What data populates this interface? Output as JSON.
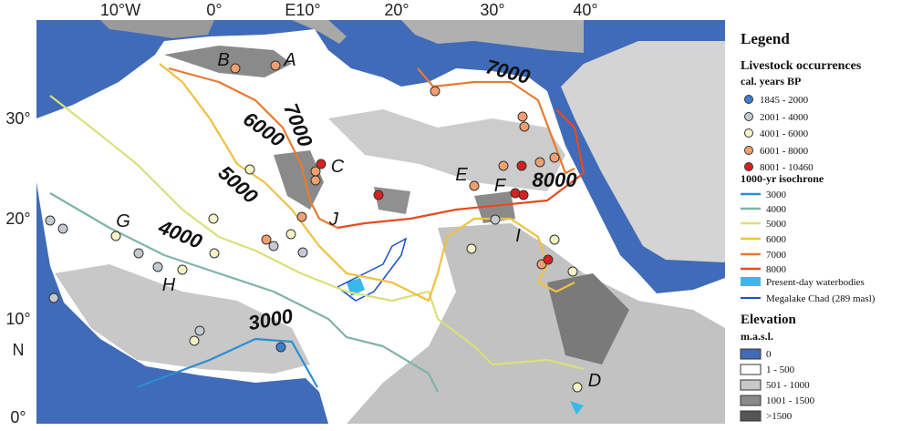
{
  "map": {
    "lon_labels": [
      "10°W",
      "0°",
      "E10°",
      "20°",
      "30°",
      "40°"
    ],
    "lat_labels": [
      "30°",
      "20°",
      "10°",
      "N",
      "0°"
    ],
    "isochrone_labels": [
      "7000",
      "6000",
      "5000",
      "4000",
      "3000",
      "7000",
      "8000"
    ],
    "sites": [
      "A",
      "B",
      "C",
      "D",
      "E",
      "F",
      "G",
      "H",
      "I",
      "J"
    ]
  },
  "legend": {
    "title": "Legend",
    "livestock": {
      "title": "Livestock occurrences",
      "subtitle": "cal. years BP",
      "items": [
        "1845 - 2000",
        "2001 - 4000",
        "4001 - 6000",
        "6001 - 8000",
        "8001 - 10460"
      ]
    },
    "isochrone": {
      "title": "1000-yr isochrone",
      "items": [
        "3000",
        "4000",
        "5000",
        "6000",
        "7000",
        "8000"
      ]
    },
    "water": [
      "Present-day waterbodies",
      "Megalake Chad (289 masl)"
    ],
    "elevation": {
      "title": "Elevation",
      "subtitle": "m.a.s.l.",
      "items": [
        "0",
        "1 - 500",
        "501 - 1000",
        "1001 - 1500",
        ">1500"
      ]
    }
  }
}
